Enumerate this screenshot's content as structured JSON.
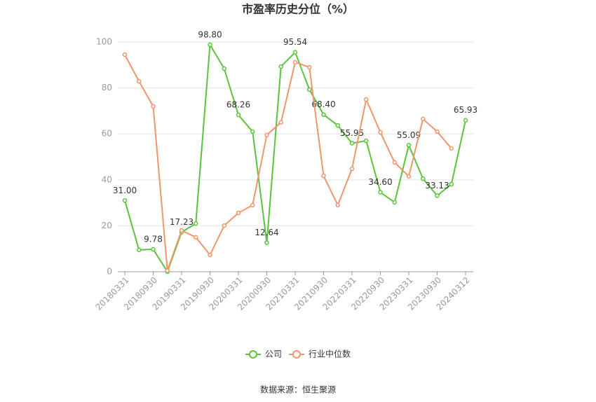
{
  "chart_data": {
    "type": "line",
    "title": "市盈率历史分位（%）",
    "source": "数据来源：恒生聚源",
    "categories": [
      "20180331",
      null,
      "20180930",
      null,
      "20190331",
      null,
      "20190930",
      null,
      "20200331",
      null,
      "20200930",
      null,
      "20210331",
      null,
      "20210930",
      null,
      "20220331",
      null,
      "20220930",
      null,
      "20230331",
      null,
      "20230930",
      null,
      "20240312"
    ],
    "ylim": [
      0,
      100
    ],
    "yticks": [
      0,
      20,
      40,
      60,
      80,
      100
    ],
    "grid": true,
    "series": [
      {
        "name": "公司",
        "color": "#5ac43a",
        "values": [
          31.0,
          9.5,
          9.78,
          0,
          17.23,
          21,
          98.8,
          88.4,
          68.26,
          61,
          12.64,
          89.3,
          95.54,
          79.3,
          68.4,
          63.7,
          55.95,
          57,
          34.6,
          30.2,
          55.09,
          40.5,
          33.13,
          38.1,
          65.93
        ],
        "value_labels": [
          "31.00",
          null,
          "9.78",
          null,
          "17.23",
          null,
          "98.80",
          null,
          "68.26",
          null,
          "12.64",
          null,
          "95.54",
          null,
          "68.40",
          null,
          "55.95",
          null,
          "34.60",
          null,
          "55.09",
          null,
          "33.13",
          null,
          "65.93"
        ]
      },
      {
        "name": "行业中位数",
        "color": "#f0956a",
        "values": [
          94.5,
          82.9,
          72,
          0.5,
          18,
          15,
          7.3,
          20.1,
          25.6,
          29,
          59.5,
          65,
          91.2,
          89,
          41.8,
          29,
          44.8,
          75,
          60.7,
          47.6,
          41.5,
          66.5,
          61,
          53.7,
          null
        ]
      }
    ]
  }
}
